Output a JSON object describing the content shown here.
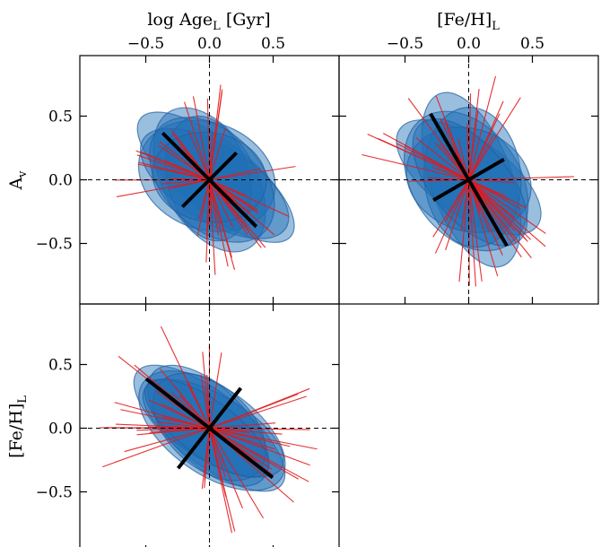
{
  "chart_data": [
    {
      "type": "scatter",
      "panel": "top-left",
      "xlabel_main": "log Age",
      "xlabel_sub": "L",
      "xlabel_unit": " [Gyr]",
      "ylabel_main": "A",
      "ylabel_sub": "v",
      "xlim": [
        -1.0,
        1.0
      ],
      "ylim": [
        -1.0,
        1.0
      ],
      "xticks": [
        -0.5,
        0.0,
        0.5
      ],
      "xtick_labels": [
        "−0.5",
        "0.0",
        "0.5"
      ],
      "yticks": [
        -0.5,
        0.0,
        0.5
      ],
      "ytick_labels": [
        "−0.5",
        "0.0",
        "0.5"
      ],
      "xaxis_position": "top",
      "grid": false,
      "principal_axes": [
        {
          "angle_deg": -45,
          "half_length": 0.52
        },
        {
          "angle_deg": 45,
          "half_length": 0.3
        }
      ],
      "ellipses": [
        {
          "cx": 0.05,
          "cy": 0.02,
          "a": 0.75,
          "b": 0.28,
          "angle": -38
        },
        {
          "cx": 0.0,
          "cy": 0.0,
          "a": 0.62,
          "b": 0.36,
          "angle": -60
        },
        {
          "cx": -0.02,
          "cy": 0.03,
          "a": 0.55,
          "b": 0.42,
          "angle": -20
        },
        {
          "cx": 0.04,
          "cy": -0.03,
          "a": 0.66,
          "b": 0.3,
          "angle": -32
        },
        {
          "cx": -0.01,
          "cy": 0.01,
          "a": 0.5,
          "b": 0.32,
          "angle": -75
        },
        {
          "cx": 0.02,
          "cy": 0.0,
          "a": 0.58,
          "b": 0.38,
          "angle": -45
        },
        {
          "cx": 0.0,
          "cy": 0.02,
          "a": 0.45,
          "b": 0.35,
          "angle": -10
        }
      ]
    },
    {
      "type": "scatter",
      "panel": "top-right",
      "xlabel_main": "[Fe/H]",
      "xlabel_sub": "L",
      "xlabel_unit": "",
      "xlim": [
        -1.0,
        1.0
      ],
      "ylim": [
        -1.0,
        1.0
      ],
      "xticks": [
        -0.5,
        0.0,
        0.5
      ],
      "xtick_labels": [
        "−0.5",
        "0.0",
        "0.5"
      ],
      "xaxis_position": "top",
      "grid": false,
      "principal_axes": [
        {
          "angle_deg": -60,
          "half_length": 0.6
        },
        {
          "angle_deg": 30,
          "half_length": 0.32
        }
      ],
      "ellipses": [
        {
          "cx": 0.02,
          "cy": 0.0,
          "a": 0.72,
          "b": 0.32,
          "angle": -70
        },
        {
          "cx": 0.0,
          "cy": 0.02,
          "a": 0.66,
          "b": 0.3,
          "angle": -35
        },
        {
          "cx": -0.02,
          "cy": -0.01,
          "a": 0.6,
          "b": 0.42,
          "angle": -55
        },
        {
          "cx": 0.03,
          "cy": 0.02,
          "a": 0.55,
          "b": 0.38,
          "angle": -85
        },
        {
          "cx": 0.0,
          "cy": 0.0,
          "a": 0.5,
          "b": 0.4,
          "angle": -20
        },
        {
          "cx": 0.01,
          "cy": -0.02,
          "a": 0.6,
          "b": 0.3,
          "angle": -50
        }
      ]
    },
    {
      "type": "scatter",
      "panel": "bottom-left",
      "ylabel_main": "[Fe/H]",
      "ylabel_sub": "L",
      "xlim": [
        -1.0,
        1.0
      ],
      "ylim": [
        -1.0,
        1.0
      ],
      "yticks": [
        -0.5,
        0.0,
        0.5
      ],
      "ytick_labels": [
        "−0.5",
        "0.0",
        "0.5"
      ],
      "grid": false,
      "principal_axes": [
        {
          "angle_deg": -38,
          "half_length": 0.63
        },
        {
          "angle_deg": 52,
          "half_length": 0.4
        }
      ],
      "ellipses": [
        {
          "cx": 0.0,
          "cy": 0.0,
          "a": 0.72,
          "b": 0.28,
          "angle": -38
        },
        {
          "cx": 0.02,
          "cy": -0.02,
          "a": 0.66,
          "b": 0.34,
          "angle": -35
        },
        {
          "cx": -0.01,
          "cy": 0.02,
          "a": 0.6,
          "b": 0.3,
          "angle": -45
        },
        {
          "cx": 0.03,
          "cy": 0.0,
          "a": 0.62,
          "b": 0.26,
          "angle": -30
        },
        {
          "cx": 0.0,
          "cy": 0.01,
          "a": 0.52,
          "b": 0.32,
          "angle": -42
        },
        {
          "cx": -0.02,
          "cy": 0.0,
          "a": 0.58,
          "b": 0.22,
          "angle": -36
        }
      ]
    }
  ],
  "colors": {
    "ellipse_fill": "#1f6fb5",
    "ellipse_edge": "#1f5f9f",
    "red_lines": "#e31a1c",
    "principal": "#000000",
    "reference": "#000000"
  }
}
